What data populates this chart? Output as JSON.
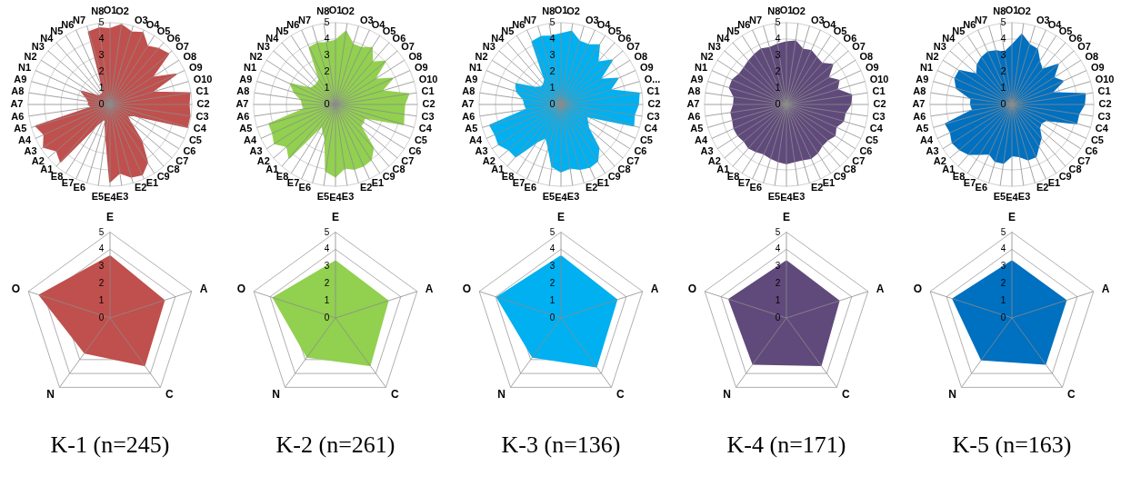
{
  "chart_data": [
    {
      "type": "radar",
      "categories": [
        "O1",
        "O2",
        "O3",
        "O4",
        "O5",
        "O6",
        "O7",
        "O8",
        "O9",
        "O10",
        "C1",
        "C2",
        "C3",
        "C4",
        "C5",
        "C6",
        "C7",
        "C8",
        "C9",
        "E1",
        "E2",
        "E3",
        "E4",
        "E5",
        "E6",
        "E7",
        "E8",
        "A1",
        "A2",
        "A3",
        "A4",
        "A5",
        "A6",
        "A7",
        "A8",
        "A9",
        "N1",
        "N2",
        "N3",
        "N4",
        "N5",
        "N6",
        "N7",
        "N8"
      ],
      "ylim": [
        0,
        5
      ],
      "yticks": [
        0,
        1,
        2,
        3,
        4,
        5
      ],
      "grid": true,
      "series": [
        {
          "color": "#c0504d",
          "values": [
            4.6,
            4.9,
            4.6,
            4.8,
            4.2,
            4.5,
            4.7,
            3.0,
            4.4,
            2.6,
            4.9,
            4.8,
            4.9,
            4.9,
            1.6,
            1.2,
            1.6,
            2.9,
            4.2,
            4.7,
            4.6,
            4.2,
            4.7,
            1.8,
            1.0,
            1.0,
            1.5,
            4.6,
            4.3,
            4.8,
            4.4,
            4.7,
            1.1,
            1.3,
            1.3,
            1.5,
            1.9,
            1.0,
            0.8,
            0.8,
            0.8,
            1.0,
            4.6,
            4.7
          ]
        }
      ]
    },
    {
      "type": "radar",
      "categories": [
        "O1",
        "O2",
        "O3",
        "O4",
        "O5",
        "O6",
        "O7",
        "O8",
        "O9",
        "O10",
        "C1",
        "C2",
        "C3",
        "C4",
        "C5",
        "C6",
        "C7",
        "C8",
        "C9",
        "E1",
        "E2",
        "E3",
        "E4",
        "E5",
        "E6",
        "E7",
        "E8",
        "A1",
        "A2",
        "A3",
        "A4",
        "A5",
        "A6",
        "A7",
        "A8",
        "A9",
        "N1",
        "N2",
        "N3",
        "N4",
        "N5",
        "N6",
        "N7",
        "N8"
      ],
      "ylim": [
        0,
        5
      ],
      "yticks": [
        0,
        1,
        2,
        3,
        4,
        5
      ],
      "grid": true,
      "series": [
        {
          "color": "#92d050",
          "values": [
            3.9,
            4.5,
            3.8,
            3.8,
            4.1,
            3.4,
            4.0,
            2.8,
            3.8,
            2.9,
            4.5,
            4.2,
            4.2,
            4.3,
            1.9,
            2.0,
            2.0,
            3.5,
            4.0,
            4.1,
            4.1,
            3.9,
            4.4,
            4.1,
            2.2,
            1.8,
            1.5,
            4.3,
            3.9,
            4.4,
            4.2,
            4.2,
            1.9,
            2.0,
            2.1,
            2.6,
            3.0,
            1.8,
            1.7,
            1.7,
            1.8,
            3.8,
            3.9,
            3.8
          ]
        }
      ]
    },
    {
      "type": "radar",
      "categories": [
        "O1",
        "O2",
        "O3",
        "O4",
        "O5",
        "O6",
        "O7",
        "O8",
        "O9",
        "O...",
        "C1",
        "C2",
        "C3",
        "C4",
        "C5",
        "C6",
        "C7",
        "C8",
        "C9",
        "E1",
        "E2",
        "E3",
        "E4",
        "E5",
        "E6",
        "E7",
        "E8",
        "A1",
        "A2",
        "A3",
        "A4",
        "A5",
        "A6",
        "A7",
        "A8",
        "A9",
        "N1",
        "N2",
        "N3",
        "N4",
        "N5",
        "N6",
        "N7",
        "N8"
      ],
      "ylim": [
        0,
        5
      ],
      "yticks": [
        0,
        1,
        2,
        3,
        4,
        5
      ],
      "grid": true,
      "series": [
        {
          "color": "#00b0f0",
          "values": [
            4.3,
            4.5,
            4.0,
            4.0,
            4.3,
            3.4,
            4.1,
            2.8,
            3.8,
            3.1,
            4.8,
            4.7,
            4.5,
            4.6,
            1.7,
            1.9,
            2.2,
            3.5,
            4.1,
            4.2,
            4.1,
            3.9,
            4.1,
            3.8,
            2.7,
            2.2,
            2.7,
            4.2,
            4.2,
            4.5,
            4.4,
            4.5,
            2.1,
            2.2,
            2.3,
            2.8,
            3.0,
            1.9,
            1.6,
            1.6,
            1.8,
            4.2,
            4.3,
            4.2
          ]
        }
      ]
    },
    {
      "type": "radar",
      "categories": [
        "O1",
        "O2",
        "O3",
        "O4",
        "O5",
        "O6",
        "O7",
        "O8",
        "O9",
        "O10",
        "C1",
        "C2",
        "C3",
        "C4",
        "C5",
        "C6",
        "C7",
        "C8",
        "C9",
        "E1",
        "E2",
        "E3",
        "E4",
        "E5",
        "E6",
        "E7",
        "E8",
        "A1",
        "A2",
        "A3",
        "A4",
        "A5",
        "A6",
        "A7",
        "A8",
        "A9",
        "N1",
        "N2",
        "N3",
        "N4",
        "N5",
        "N6",
        "N7",
        "N8"
      ],
      "ylim": [
        0,
        5
      ],
      "yticks": [
        0,
        1,
        2,
        3,
        4,
        5
      ],
      "grid": true,
      "series": [
        {
          "color": "#604a7b",
          "values": [
            3.8,
            3.9,
            3.5,
            3.6,
            3.4,
            3.3,
            3.7,
            3.0,
            3.5,
            3.2,
            4.0,
            3.9,
            3.6,
            3.6,
            3.3,
            3.5,
            3.3,
            3.3,
            3.5,
            3.6,
            3.5,
            3.5,
            3.6,
            3.5,
            3.4,
            3.3,
            3.4,
            3.5,
            3.4,
            3.5,
            3.5,
            3.4,
            3.4,
            3.2,
            3.2,
            3.6,
            3.6,
            3.4,
            3.4,
            3.5,
            3.6,
            3.7,
            3.6,
            3.7
          ]
        }
      ]
    },
    {
      "type": "radar",
      "categories": [
        "O1",
        "O2",
        "O3",
        "O4",
        "O5",
        "O6",
        "O7",
        "O8",
        "O9",
        "O10",
        "C1",
        "C2",
        "C3",
        "C4",
        "C5",
        "C6",
        "C7",
        "C8",
        "C9",
        "E1",
        "E2",
        "E3",
        "E4",
        "E5",
        "E6",
        "E7",
        "E8",
        "A1",
        "A2",
        "A3",
        "A4",
        "A5",
        "A6",
        "A7",
        "A8",
        "A9",
        "N1",
        "N2",
        "N3",
        "N4",
        "N5",
        "N6",
        "N7",
        "N8"
      ],
      "ylim": [
        0,
        5
      ],
      "yticks": [
        0,
        1,
        2,
        3,
        4,
        5
      ],
      "grid": true,
      "series": [
        {
          "color": "#0070c0",
          "values": [
            3.6,
            4.3,
            3.8,
            3.7,
            3.1,
            2.8,
            3.7,
            3.0,
            3.4,
            2.5,
            4.5,
            4.4,
            4.1,
            4.1,
            2.3,
            2.1,
            2.2,
            2.7,
            3.0,
            3.5,
            3.5,
            3.2,
            3.1,
            3.6,
            3.6,
            3.3,
            3.6,
            4.0,
            4.2,
            4.3,
            4.1,
            4.2,
            2.4,
            2.5,
            2.5,
            3.5,
            3.8,
            3.8,
            2.8,
            3.2,
            3.4,
            3.5,
            3.4,
            3.2
          ]
        }
      ]
    },
    {
      "type": "radar",
      "title": "K-1 (n=245)",
      "categories": [
        "E",
        "A",
        "C",
        "N",
        "O"
      ],
      "ylim": [
        0,
        5
      ],
      "yticks": [
        0,
        1,
        2,
        3,
        4,
        5
      ],
      "grid": true,
      "series": [
        {
          "color": "#c0504d",
          "values": [
            3.6,
            3.3,
            3.4,
            2.5,
            4.3
          ]
        }
      ]
    },
    {
      "type": "radar",
      "title": "K-2 (n=261)",
      "categories": [
        "E",
        "A",
        "C",
        "N",
        "O"
      ],
      "ylim": [
        0,
        5
      ],
      "yticks": [
        0,
        1,
        2,
        3,
        4,
        5
      ],
      "grid": true,
      "series": [
        {
          "color": "#92d050",
          "values": [
            3.3,
            3.2,
            3.4,
            2.8,
            3.8
          ]
        }
      ]
    },
    {
      "type": "radar",
      "title": "K-3 (n=136)",
      "categories": [
        "E",
        "A",
        "C",
        "N",
        "O"
      ],
      "ylim": [
        0,
        5
      ],
      "yticks": [
        0,
        1,
        2,
        3,
        4,
        5
      ],
      "grid": true,
      "series": [
        {
          "color": "#00b0f0",
          "values": [
            3.6,
            3.4,
            3.5,
            2.8,
            3.9
          ]
        }
      ]
    },
    {
      "type": "radar",
      "title": "K-4 (n=171)",
      "categories": [
        "E",
        "A",
        "C",
        "N",
        "O"
      ],
      "ylim": [
        0,
        5
      ],
      "yticks": [
        0,
        1,
        2,
        3,
        4,
        5
      ],
      "grid": true,
      "series": [
        {
          "color": "#604a7b",
          "values": [
            3.3,
            3.2,
            3.4,
            3.3,
            3.5
          ]
        }
      ]
    },
    {
      "type": "radar",
      "title": "K-5 (n=163)",
      "categories": [
        "E",
        "A",
        "C",
        "N",
        "O"
      ],
      "ylim": [
        0,
        5
      ],
      "yticks": [
        0,
        1,
        2,
        3,
        4,
        5
      ],
      "grid": true,
      "series": [
        {
          "color": "#0070c0",
          "values": [
            3.3,
            3.3,
            3.3,
            3.0,
            3.6
          ]
        }
      ]
    }
  ]
}
